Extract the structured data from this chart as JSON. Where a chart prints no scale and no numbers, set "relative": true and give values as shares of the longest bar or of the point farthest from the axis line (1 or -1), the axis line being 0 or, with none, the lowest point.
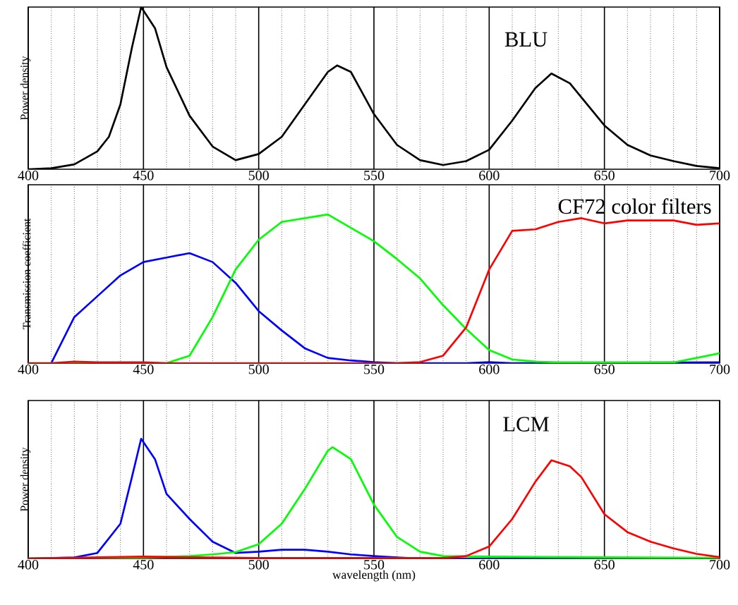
{
  "chart_data": [
    {
      "type": "line",
      "ylabel": "Power density",
      "annotations": [
        "BLU"
      ],
      "relative": true,
      "xlim": [
        400,
        700
      ],
      "xticks": [
        400,
        450,
        500,
        550,
        600,
        650,
        700
      ],
      "grid": "x",
      "series": [
        {
          "color": "#000000",
          "x": [
            400,
            410,
            420,
            430,
            435,
            440,
            445,
            449,
            455,
            460,
            470,
            480,
            490,
            500,
            510,
            520,
            530,
            534,
            540,
            550,
            560,
            570,
            580,
            590,
            600,
            610,
            620,
            627,
            635,
            650,
            660,
            670,
            680,
            690,
            700
          ],
          "values": [
            0,
            0.006,
            0.03,
            0.11,
            0.2,
            0.4,
            0.75,
            1.0,
            0.87,
            0.63,
            0.33,
            0.14,
            0.056,
            0.094,
            0.2,
            0.4,
            0.6,
            0.64,
            0.6,
            0.34,
            0.15,
            0.056,
            0.026,
            0.05,
            0.12,
            0.3,
            0.5,
            0.59,
            0.53,
            0.27,
            0.15,
            0.085,
            0.05,
            0.02,
            0.006
          ]
        }
      ]
    },
    {
      "type": "line",
      "ylabel": "Transmission coefficient",
      "annotations": [
        "CF72 color filters"
      ],
      "relative": true,
      "xlim": [
        400,
        700
      ],
      "xticks": [
        400,
        450,
        500,
        550,
        600,
        650,
        700
      ],
      "grid": "x",
      "series": [
        {
          "color": "#0000ff",
          "x": [
            410,
            420,
            430,
            440,
            450,
            460,
            470,
            480,
            490,
            500,
            510,
            520,
            530,
            540,
            550,
            560,
            570,
            580,
            590,
            600,
            610,
            700
          ],
          "values": [
            0,
            0.31,
            0.45,
            0.59,
            0.68,
            0.71,
            0.74,
            0.68,
            0.54,
            0.35,
            0.22,
            0.1,
            0.035,
            0.018,
            0.007,
            0,
            0,
            0,
            0,
            0.007,
            0,
            0.005
          ]
        },
        {
          "color": "#00ff00",
          "x": [
            400,
            460,
            470,
            480,
            490,
            500,
            510,
            520,
            530,
            540,
            550,
            560,
            570,
            580,
            590,
            600,
            610,
            620,
            630,
            680,
            690,
            700
          ],
          "values": [
            0,
            0,
            0.05,
            0.31,
            0.63,
            0.83,
            0.95,
            0.975,
            1.0,
            0.91,
            0.82,
            0.7,
            0.57,
            0.39,
            0.23,
            0.088,
            0.025,
            0.01,
            0.005,
            0.005,
            0.035,
            0.067
          ]
        },
        {
          "color": "#ff0000",
          "x": [
            400,
            410,
            420,
            430,
            450,
            460,
            560,
            570,
            580,
            590,
            600,
            610,
            620,
            630,
            640,
            650,
            660,
            670,
            680,
            690,
            700
          ],
          "values": [
            0,
            0,
            0.01,
            0.005,
            0.005,
            0,
            0,
            0.007,
            0.05,
            0.24,
            0.63,
            0.89,
            0.9,
            0.95,
            0.975,
            0.94,
            0.96,
            0.96,
            0.96,
            0.93,
            0.94
          ]
        }
      ]
    },
    {
      "type": "line",
      "xlabel": "wavelength (nm)",
      "ylabel": "Power density",
      "annotations": [
        "LCM"
      ],
      "relative": true,
      "xlim": [
        400,
        700
      ],
      "xticks": [
        400,
        450,
        500,
        550,
        600,
        650,
        700
      ],
      "grid": "x",
      "series": [
        {
          "color": "#0000ff",
          "x": [
            400,
            420,
            430,
            440,
            445,
            449,
            455,
            460,
            470,
            480,
            490,
            500,
            510,
            520,
            530,
            540,
            550,
            560,
            570,
            700
          ],
          "values": [
            0,
            0.008,
            0.046,
            0.29,
            0.68,
            1.0,
            0.83,
            0.54,
            0.33,
            0.14,
            0.046,
            0.057,
            0.073,
            0.073,
            0.057,
            0.034,
            0.02,
            0.008,
            0,
            0
          ]
        },
        {
          "color": "#00ff00",
          "x": [
            400,
            450,
            470,
            480,
            490,
            500,
            510,
            520,
            530,
            532,
            540,
            550,
            560,
            570,
            580,
            600,
            650,
            700
          ],
          "values": [
            0,
            0.008,
            0.02,
            0.034,
            0.053,
            0.12,
            0.29,
            0.58,
            0.9,
            0.93,
            0.83,
            0.45,
            0.18,
            0.057,
            0.02,
            0.015,
            0.01,
            0.005
          ]
        },
        {
          "color": "#ff0000",
          "x": [
            400,
            450,
            500,
            580,
            590,
            600,
            610,
            620,
            627,
            635,
            640,
            650,
            660,
            670,
            680,
            690,
            700
          ],
          "values": [
            0,
            0.015,
            0.004,
            0.004,
            0.02,
            0.1,
            0.33,
            0.64,
            0.82,
            0.77,
            0.68,
            0.37,
            0.22,
            0.14,
            0.084,
            0.038,
            0.011
          ]
        }
      ]
    }
  ]
}
